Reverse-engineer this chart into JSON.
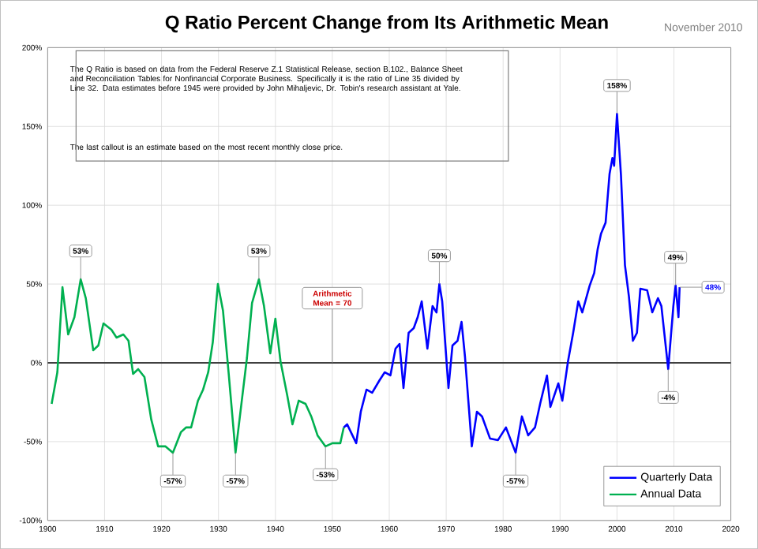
{
  "chart_data": {
    "type": "line",
    "title": "Q Ratio Percent Change from Its Arithmetic Mean",
    "subtitle": "November 2010",
    "xlim": [
      1900,
      2020
    ],
    "xticks": [
      1900,
      1910,
      1920,
      1930,
      1940,
      1950,
      1960,
      1970,
      1980,
      1990,
      2000,
      2010,
      2020
    ],
    "ylim": [
      -100,
      200
    ],
    "yticks": [
      {
        "value": -100,
        "label": "-100%"
      },
      {
        "value": -50,
        "label": "-50%"
      },
      {
        "value": 0,
        "label": "0%"
      },
      {
        "value": 50,
        "label": "50%"
      },
      {
        "value": 100,
        "label": "100%"
      },
      {
        "value": 150,
        "label": "150%"
      },
      {
        "value": 200,
        "label": "200%"
      }
    ],
    "grid": true,
    "legend": "bottom right",
    "marker": "none",
    "line_style": "solid",
    "ref_lines": [
      {
        "axis": "y",
        "value": 0,
        "color": "#404040"
      }
    ],
    "series": [
      {
        "name": "Quarterly Data",
        "color": "#0000ff",
        "x": [
          1952,
          1952.6,
          1954.2,
          1955,
          1956,
          1957,
          1958.3,
          1959.2,
          1960.2,
          1961.1,
          1961.8,
          1962.5,
          1963.4,
          1964.3,
          1965,
          1965.7,
          1966.7,
          1967.6,
          1968.3,
          1968.8,
          1969.3,
          1970.4,
          1971.1,
          1972,
          1972.7,
          1973.3,
          1974.5,
          1975.4,
          1976.3,
          1977.7,
          1979.1,
          1980.5,
          1982.2,
          1983.3,
          1984.4,
          1985.6,
          1986.5,
          1987.7,
          1988.3,
          1989.7,
          1990.4,
          1991.4,
          1992.3,
          1993.2,
          1993.9,
          1995.2,
          1996,
          1996.6,
          1997.2,
          1998,
          1998.7,
          1999.2,
          1999.5,
          2000,
          2000.7,
          2001.4,
          2002.1,
          2002.8,
          2003.5,
          2004.1,
          2005.3,
          2006.2,
          2007.2,
          2007.8,
          2009,
          2009.9,
          2010.3,
          2010.8,
          2011
        ],
        "values": [
          -41,
          -39,
          -51,
          -31,
          -17,
          -19,
          -11,
          -6,
          -8,
          9,
          12,
          -16,
          19,
          22,
          29,
          39,
          9,
          36,
          32,
          50,
          39,
          -16,
          11,
          14,
          26,
          4,
          -53,
          -31,
          -34,
          -48,
          -49,
          -41,
          -57,
          -34,
          -46,
          -41,
          -26,
          -8,
          -28,
          -13,
          -24,
          1,
          19,
          39,
          32,
          49,
          57,
          72,
          82,
          89,
          120,
          130,
          125,
          158,
          119,
          62,
          42,
          14,
          19,
          47,
          46,
          32,
          41,
          36,
          -4,
          36,
          49,
          29,
          48
        ]
      },
      {
        "name": "Annual Data",
        "color": "#00b050",
        "x": [
          1900.7,
          1901.7,
          1902.6,
          1903.6,
          1904.7,
          1905.8,
          1906.7,
          1908,
          1908.9,
          1909.8,
          1911.2,
          1912.1,
          1913.3,
          1914.2,
          1915,
          1915.9,
          1917,
          1918.2,
          1919.4,
          1920.7,
          1922,
          1923.4,
          1924.3,
          1925.2,
          1926.4,
          1927.3,
          1928.2,
          1929,
          1929.9,
          1930.8,
          1931.8,
          1933,
          1934.1,
          1935,
          1935.9,
          1937.1,
          1938,
          1939.1,
          1940,
          1940.9,
          1942.1,
          1943,
          1944.1,
          1945.3,
          1946.3,
          1947.4,
          1948.8,
          1950,
          1951.4,
          1952
        ],
        "values": [
          -26,
          -6,
          48,
          18,
          29,
          53,
          41,
          8,
          11,
          25,
          21,
          16,
          18,
          14,
          -7,
          -4,
          -9,
          -36,
          -53,
          -53,
          -57,
          -44,
          -41,
          -41,
          -24,
          -17,
          -6,
          13,
          50,
          33,
          -7,
          -57,
          -24,
          3,
          38,
          53,
          36,
          6,
          28,
          1,
          -21,
          -39,
          -24,
          -26,
          -34,
          -46,
          -53,
          -51,
          -51,
          -41
        ]
      }
    ],
    "annotations": [
      "The Q Ratio is based on data from the Federal Reserve Z.1 Statistical Release, section B.102., Balance Sheet and Reconciliation Tables for Nonfinancial Corporate Business. Specifically it is the ratio of Line 35 divided by Line 32. Data estimates before 1945 were provided by John Mihaljevic, Dr. Tobin's research assistant at Yale.",
      "The last callout is an estimate based on the most recent monthly close price.",
      {
        "text": "53%",
        "x": 1905.8,
        "y": 53
      },
      {
        "text": "-57%",
        "x": 1922,
        "y": -57
      },
      {
        "text": "53%",
        "x": 1937.1,
        "y": 53
      },
      {
        "text": "-57%",
        "x": 1933,
        "y": -57
      },
      {
        "text": "-53%",
        "x": 1948.8,
        "y": -53
      },
      {
        "text": "Arithmetic Mean = 70",
        "x": 1950,
        "y": 0
      },
      {
        "text": "50%",
        "x": 1968.8,
        "y": 50
      },
      {
        "text": "-57%",
        "x": 1982.2,
        "y": -57
      },
      {
        "text": "158%",
        "x": 2000,
        "y": 158
      },
      {
        "text": "49%",
        "x": 2010.3,
        "y": 49
      },
      {
        "text": "-4%",
        "x": 2009,
        "y": -4
      },
      {
        "text": "48%",
        "x": 2011,
        "y": 48
      }
    ]
  }
}
